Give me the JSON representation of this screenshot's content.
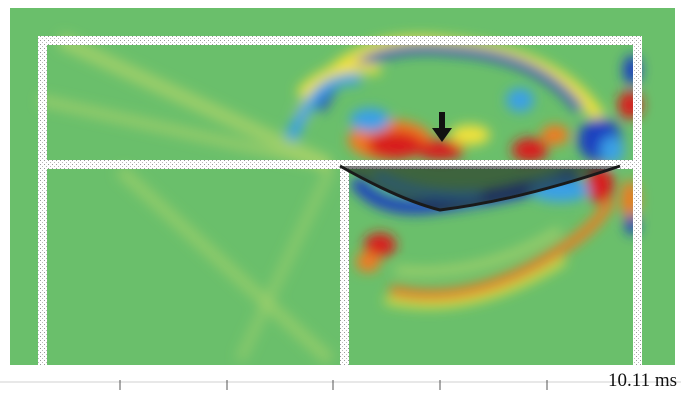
{
  "simulation": {
    "time_label": "10.11 ms",
    "background_color": "#6abf6b",
    "colormap": [
      "#1c3fbf",
      "#3aa0e6",
      "#6abf6b",
      "#f2e23a",
      "#f07a20",
      "#d81a1a"
    ],
    "structure_color": "#ffffff",
    "deformed_plate_color": "#1a1a1a",
    "indicators": [
      "down-arrow-icon"
    ]
  }
}
